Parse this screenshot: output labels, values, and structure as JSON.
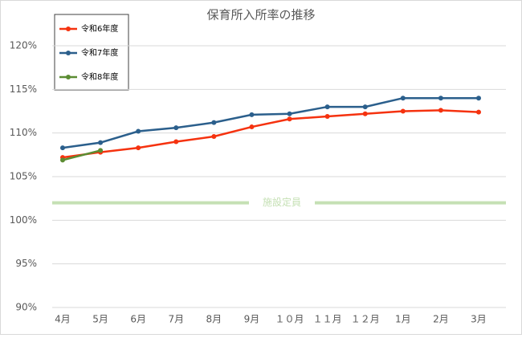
{
  "chart_data": {
    "type": "line",
    "title": "保育所入所率の推移",
    "categories": [
      "4月",
      "5月",
      "6月",
      "7月",
      "8月",
      "9月",
      "１０月",
      "１１月",
      "１２月",
      "1月",
      "2月",
      "3月"
    ],
    "series": [
      {
        "name": "令和6年度",
        "color": "#f5320f",
        "values": [
          107.2,
          107.8,
          108.3,
          109.0,
          109.6,
          110.7,
          111.6,
          111.9,
          112.2,
          112.5,
          112.6,
          112.4
        ]
      },
      {
        "name": "令和7年度",
        "color": "#2b5f8c",
        "values": [
          108.3,
          108.9,
          110.2,
          110.6,
          111.2,
          112.1,
          112.2,
          113.0,
          113.0,
          114.0,
          114.0,
          114.0
        ]
      },
      {
        "name": "令和8年度",
        "color": "#5b8c32",
        "values": [
          106.9,
          108.0,
          null,
          null,
          null,
          null,
          null,
          null,
          null,
          null,
          null,
          null
        ]
      }
    ],
    "reference": {
      "label": "施設定員",
      "value": 102,
      "color": "#c5e0b4"
    },
    "ylim": [
      90,
      120
    ],
    "yticks": [
      {
        "value": 90,
        "label": "90%"
      },
      {
        "value": 95,
        "label": "95%"
      },
      {
        "value": 100,
        "label": "100%"
      },
      {
        "value": 105,
        "label": "105%"
      },
      {
        "value": 110,
        "label": "110%"
      },
      {
        "value": 115,
        "label": "115%"
      },
      {
        "value": 120,
        "label": "120%"
      }
    ],
    "grid": true
  }
}
